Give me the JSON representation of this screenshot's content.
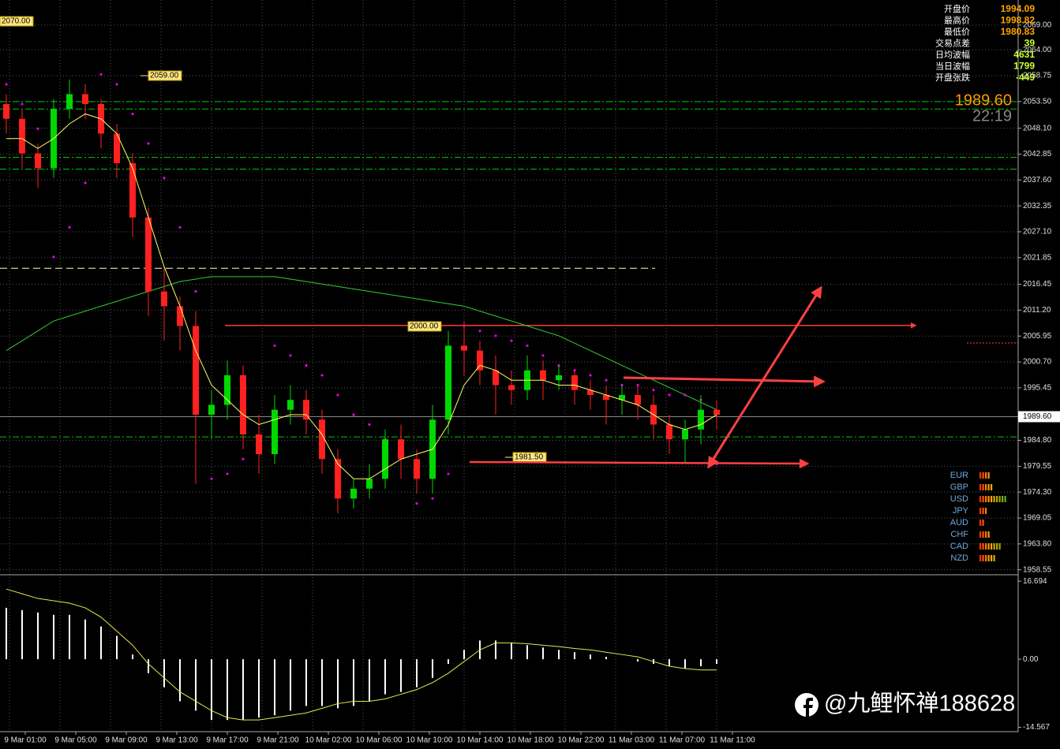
{
  "chart_data": [
    {
      "type": "candlestick",
      "up_color": "#00d800",
      "down_color": "#ff2020",
      "open": [
        2053,
        2050,
        2043,
        2040,
        2052,
        2055,
        2053,
        2047,
        2041,
        2030,
        2015,
        2012,
        2008,
        1990,
        1992,
        1998,
        1986,
        1982,
        1991,
        1993,
        1989,
        1981,
        1973,
        1975,
        1977,
        1985,
        1981,
        1977,
        1989,
        2004,
        2003,
        1999,
        1996,
        1995,
        1999,
        1997,
        1998,
        1995,
        1994,
        1993,
        1994,
        1992,
        1988,
        1985,
        1987,
        1991
      ],
      "high": [
        2055,
        2052,
        2045,
        2054,
        2058,
        2057,
        2054,
        2049,
        2043,
        2032,
        2020,
        2014,
        2011,
        1995,
        2001,
        2000,
        1990,
        1994,
        1996,
        1995,
        1991,
        1983,
        1977,
        1980,
        1987,
        1988,
        1983,
        1992,
        2007,
        2009,
        2005,
        2002,
        1999,
        2002,
        2001,
        2000,
        1999,
        1997,
        1996,
        1996,
        1996,
        1994,
        1990,
        1989,
        1994,
        1993
      ],
      "low": [
        2047,
        2040,
        2036,
        2038,
        2050,
        2050,
        2044,
        2038,
        2026,
        2010,
        2005,
        2003,
        1976,
        1985,
        1989,
        1983,
        1978,
        1980,
        1988,
        1986,
        1978,
        1970,
        1971,
        1973,
        1975,
        1977,
        1974,
        1974,
        1986,
        1998,
        1996,
        1990,
        1992,
        1993,
        1993,
        1995,
        1992,
        1991,
        1988,
        1990,
        1989,
        1985,
        1982,
        1980,
        1984,
        1987
      ],
      "close": [
        2050,
        2043,
        2040,
        2052,
        2055,
        2053,
        2047,
        2041,
        2030,
        2015,
        2012,
        2008,
        1990,
        1992,
        1998,
        1986,
        1982,
        1991,
        1993,
        1989,
        1981,
        1973,
        1975,
        1977,
        1985,
        1981,
        1977,
        1989,
        2004,
        2003,
        1999,
        1996,
        1995,
        1999,
        1997,
        1998,
        1995,
        1994,
        1993,
        1994,
        1992,
        1988,
        1985,
        1987,
        1991,
        1990
      ],
      "ma_fast": {
        "color": "#ffff66",
        "values": [
          2046,
          2046,
          2044,
          2046,
          2049,
          2051,
          2050,
          2047,
          2040,
          2030,
          2020,
          2012,
          2003,
          1996,
          1993,
          1990,
          1988,
          1989,
          1990,
          1990,
          1986,
          1980,
          1977,
          1977,
          1979,
          1981,
          1982,
          1983,
          1988,
          1996,
          2000,
          1999,
          1997,
          1997,
          1997,
          1996,
          1996,
          1995,
          1994,
          1993,
          1992,
          1990,
          1988,
          1987,
          1988,
          1990
        ]
      },
      "ma_slow": {
        "color": "#33cc33",
        "values": [
          2003,
          2005,
          2007,
          2009,
          2010,
          2011,
          2012,
          2013,
          2014,
          2015,
          2016,
          2017,
          2017.5,
          2018,
          2018,
          2018,
          2018,
          2018,
          2017.5,
          2017,
          2016.5,
          2016,
          2015.5,
          2015,
          2014.5,
          2014,
          2013.5,
          2013,
          2012.5,
          2012,
          2011,
          2010,
          2009,
          2008,
          2007,
          2006,
          2004.5,
          2003,
          2001.5,
          2000,
          1998.5,
          1997,
          1995.5,
          1994,
          1992.5,
          1991
        ]
      },
      "sar": {
        "color": "#e600e6",
        "values": [
          2057,
          2053,
          2048,
          2022,
          2028,
          2037,
          2059,
          2057,
          2051,
          2045,
          2038,
          2028,
          2015,
          1977,
          1978,
          1981,
          1983,
          2004,
          2002,
          2000,
          1998,
          1994,
          1990,
          1988,
          1985,
          1984,
          1972,
          1973,
          1978,
          2008,
          2007,
          2006,
          2005,
          2004,
          2002,
          2000,
          1999,
          1998,
          1997,
          1996,
          1996,
          1995,
          1994,
          1994,
          1993,
          1980
        ]
      },
      "ylim": [
        1957.7,
        2074.1
      ],
      "yticks": [
        {
          "value": 2069,
          "label": "2069.00"
        },
        {
          "value": 2064,
          "label": "2064.00"
        },
        {
          "value": 2058.75,
          "label": "2058.75"
        },
        {
          "value": 2053.5,
          "label": "2053.50"
        },
        {
          "value": 2048.1,
          "label": "2048.10"
        },
        {
          "value": 2042.85,
          "label": "2042.85"
        },
        {
          "value": 2037.6,
          "label": "2037.60"
        },
        {
          "value": 2032.35,
          "label": "2032.35"
        },
        {
          "value": 2027.1,
          "label": "2027.10"
        },
        {
          "value": 2021.85,
          "label": "2021.85"
        },
        {
          "value": 2016.45,
          "label": "2016.45"
        },
        {
          "value": 2011.2,
          "label": "2011.20"
        },
        {
          "value": 2005.95,
          "label": "2005.95"
        },
        {
          "value": 2000.7,
          "label": "2000.70"
        },
        {
          "value": 1995.45,
          "label": "1995.45"
        },
        {
          "value": 1984.8,
          "label": "1984.80"
        },
        {
          "value": 1979.55,
          "label": "1979.55"
        },
        {
          "value": 1974.3,
          "label": "1974.30"
        },
        {
          "value": 1969.05,
          "label": "1969.05"
        },
        {
          "value": 1963.8,
          "label": "1963.80"
        },
        {
          "value": 1958.55,
          "label": "1958.55"
        }
      ],
      "grid": true,
      "levels": [
        {
          "value": 2053.5,
          "color": "#00c800"
        },
        {
          "value": 2052,
          "color": "#00c800"
        },
        {
          "value": 2042.2,
          "color": "#00c800"
        },
        {
          "value": 2039.8,
          "color": "#00c800"
        },
        {
          "value": 1985.5,
          "color": "#00c800"
        },
        {
          "value": 2019.7,
          "color": "#ffffcc"
        },
        {
          "value": 2008.1,
          "color": "#ff3b3b"
        }
      ],
      "last_price": {
        "value": 1989.6,
        "label": "1989.60"
      },
      "price_labels": [
        "2070.00",
        "2059.00",
        "2000.00",
        "1981.50"
      ],
      "time_labels": [
        "9 Mar 01:00",
        "9 Mar 05:00",
        "9 Mar 09:00",
        "9 Mar 13:00",
        "9 Mar 17:00",
        "9 Mar 21:00",
        "10 Mar 02:00",
        "10 Mar 06:00",
        "10 Mar 10:00",
        "10 Mar 14:00",
        "10 Mar 18:00",
        "10 Mar 22:00",
        "11 Mar 03:00",
        "11 Mar 07:00",
        "11 Mar 11:00"
      ]
    },
    {
      "type": "bar",
      "values": [
        11,
        10.5,
        10,
        9.5,
        9.5,
        8.5,
        7,
        5,
        1,
        -3,
        -6,
        -9,
        -11,
        -13,
        -13,
        -13,
        -12.5,
        -12,
        -11,
        -10,
        -10,
        -10.5,
        -10,
        -9,
        -7.5,
        -7,
        -6,
        -4,
        -1,
        2,
        4,
        4,
        3.5,
        3,
        2.5,
        2,
        1.5,
        1,
        0.5,
        0,
        -0.5,
        -1,
        -1.5,
        -2,
        -1.5,
        -1
      ],
      "color": "#ffffff",
      "signal": {
        "color": "#e6e64d",
        "values": [
          15,
          14,
          13,
          12.5,
          12,
          11,
          9,
          6,
          3,
          -1,
          -4,
          -7,
          -9,
          -11,
          -12.5,
          -13,
          -13,
          -12.5,
          -12,
          -11.5,
          -10.5,
          -9.5,
          -9,
          -9,
          -8.5,
          -7.5,
          -6.5,
          -5,
          -3,
          -0.5,
          2,
          3.5,
          3.5,
          3.3,
          3,
          2.7,
          2.3,
          2,
          1.5,
          1,
          0.5,
          -0.5,
          -1.5,
          -2,
          -2.3,
          -2.3
        ]
      },
      "ylim": [
        -15.5,
        17.9
      ],
      "yticks": [
        16.694,
        {
          "value": 0,
          "label": "0.00"
        },
        -14.567
      ]
    }
  ],
  "info_panel": [
    {
      "label": "开盘价",
      "value": 1994.09,
      "color": "#ffa500"
    },
    {
      "label": "最高价",
      "value": 1998.82,
      "color": "#ffa500"
    },
    {
      "label": "最低价",
      "value": 1980.83,
      "color": "#ffa500"
    },
    {
      "label": "交易点差",
      "value": 39,
      "color": "#ccff33"
    },
    {
      "label": "日均波幅",
      "value": 4631,
      "color": "#ccff33"
    },
    {
      "label": "当日波幅",
      "value": 1799,
      "color": "#ccff33"
    },
    {
      "label": "开盘张跌",
      "value": -449,
      "color": "#ccff33"
    }
  ],
  "clock": "22:19",
  "currency_strength": [
    {
      "name": "EUR",
      "value": 4
    },
    {
      "name": "GBP",
      "value": 5
    },
    {
      "name": "USD",
      "value": 10
    },
    {
      "name": "JPY",
      "value": 3
    },
    {
      "name": "AUD",
      "value": 2
    },
    {
      "name": "CHF",
      "value": 4
    },
    {
      "name": "CAD",
      "value": 8
    },
    {
      "name": "NZD",
      "value": 6
    }
  ],
  "watermark": "@九鲤怀禅188628"
}
